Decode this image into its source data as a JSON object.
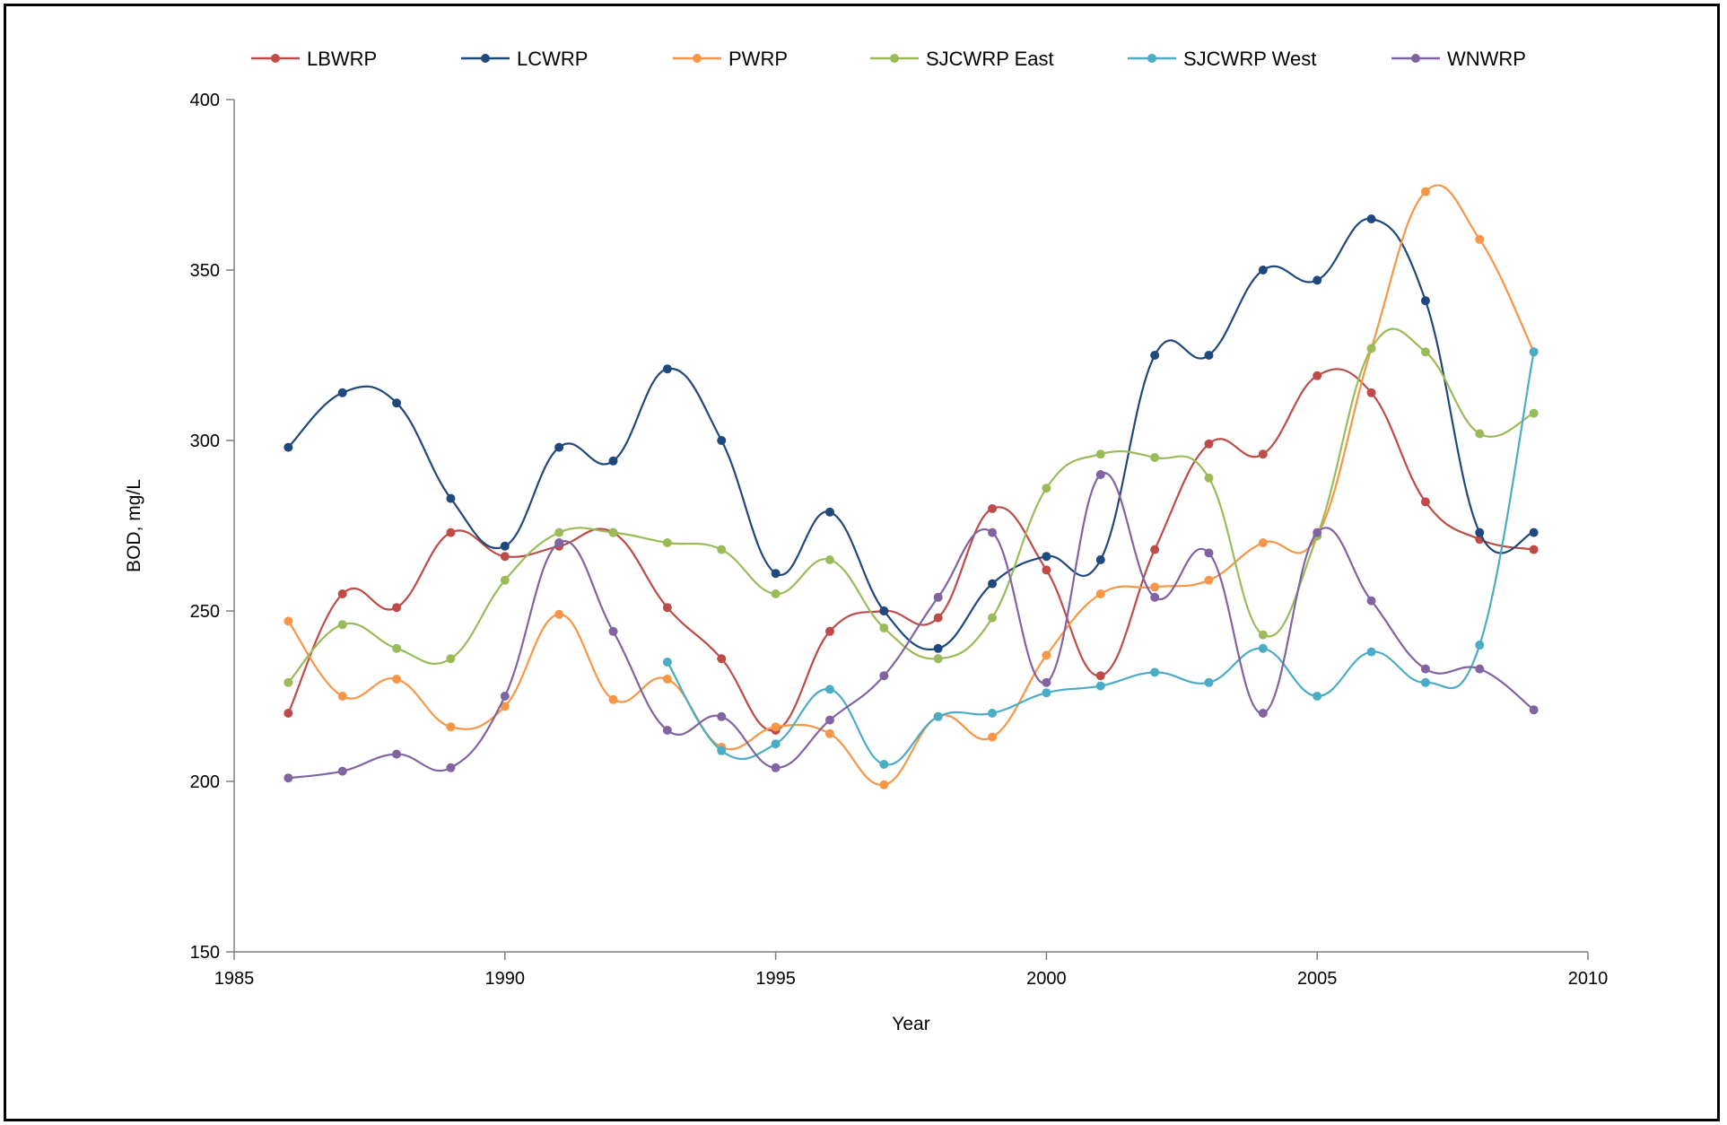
{
  "chart_data": {
    "type": "line",
    "title": "",
    "xlabel": "Year",
    "ylabel": "BOD, mg/L",
    "xlim": [
      1985,
      2010
    ],
    "ylim": [
      150,
      400
    ],
    "x_ticks": [
      1985,
      1990,
      1995,
      2000,
      2005,
      2010
    ],
    "y_ticks": [
      150,
      200,
      250,
      300,
      350,
      400
    ],
    "x_tick_labels": [
      "1985",
      "1990",
      "1995",
      "2000",
      "2005",
      "2010"
    ],
    "y_tick_labels": [
      "150",
      "200",
      "250",
      "300",
      "350",
      "400"
    ],
    "grid": false,
    "legend_position": "top",
    "smooth": true,
    "series": [
      {
        "name": "LBWRP",
        "color": "#BE4B48",
        "x": [
          1986,
          1987,
          1988,
          1989,
          1990,
          1991,
          1992,
          1993,
          1994,
          1995,
          1996,
          1997,
          1998,
          1999,
          2000,
          2001,
          2002,
          2003,
          2004,
          2005,
          2006,
          2007,
          2008,
          2009
        ],
        "y": [
          220,
          255,
          251,
          273,
          266,
          269,
          273,
          251,
          236,
          215,
          244,
          250,
          248,
          280,
          262,
          231,
          268,
          299,
          296,
          319,
          314,
          282,
          271,
          268
        ]
      },
      {
        "name": "LCWRP",
        "color": "#1F497D",
        "x": [
          1986,
          1987,
          1988,
          1989,
          1990,
          1991,
          1992,
          1993,
          1994,
          1995,
          1996,
          1997,
          1998,
          1999,
          2000,
          2001,
          2002,
          2003,
          2004,
          2005,
          2006,
          2007,
          2008,
          2009
        ],
        "y": [
          298,
          314,
          311,
          283,
          269,
          298,
          294,
          321,
          300,
          261,
          279,
          250,
          239,
          258,
          266,
          265,
          325,
          325,
          350,
          347,
          365,
          341,
          273,
          273
        ]
      },
      {
        "name": "PWRP",
        "color": "#F79646",
        "x": [
          1986,
          1987,
          1988,
          1989,
          1990,
          1991,
          1992,
          1993,
          1994,
          1995,
          1996,
          1997,
          1998,
          1999,
          2000,
          2001,
          2002,
          2003,
          2004,
          2005,
          2006,
          2007,
          2008,
          2009
        ],
        "y": [
          247,
          225,
          230,
          216,
          222,
          249,
          224,
          230,
          210,
          216,
          214,
          199,
          219,
          213,
          237,
          255,
          257,
          259,
          270,
          272,
          327,
          373,
          359,
          326
        ]
      },
      {
        "name": "SJCWRP East",
        "color": "#9BBB59",
        "x": [
          1986,
          1987,
          1988,
          1989,
          1990,
          1991,
          1992,
          1993,
          1994,
          1995,
          1996,
          1997,
          1998,
          1999,
          2000,
          2001,
          2002,
          2003,
          2004,
          2005,
          2006,
          2007,
          2008,
          2009
        ],
        "y": [
          229,
          246,
          239,
          236,
          259,
          273,
          273,
          270,
          268,
          255,
          265,
          245,
          236,
          248,
          286,
          296,
          295,
          289,
          243,
          272,
          327,
          326,
          302,
          308
        ]
      },
      {
        "name": "SJCWRP West",
        "color": "#4BACC6",
        "x": [
          1993,
          1994,
          1995,
          1996,
          1997,
          1998,
          1999,
          2000,
          2001,
          2002,
          2003,
          2004,
          2005,
          2006,
          2007,
          2008,
          2009
        ],
        "y": [
          235,
          209,
          211,
          227,
          205,
          219,
          220,
          226,
          228,
          232,
          229,
          239,
          225,
          238,
          229,
          240,
          326
        ]
      },
      {
        "name": "WNWRP",
        "color": "#8064A2",
        "x": [
          1986,
          1987,
          1988,
          1989,
          1990,
          1991,
          1992,
          1993,
          1994,
          1995,
          1996,
          1997,
          1998,
          1999,
          2000,
          2001,
          2002,
          2003,
          2004,
          2005,
          2006,
          2007,
          2008,
          2009
        ],
        "y": [
          201,
          203,
          208,
          204,
          225,
          270,
          244,
          215,
          219,
          204,
          218,
          231,
          254,
          273,
          229,
          290,
          254,
          267,
          220,
          273,
          253,
          233,
          233,
          221
        ]
      }
    ]
  }
}
